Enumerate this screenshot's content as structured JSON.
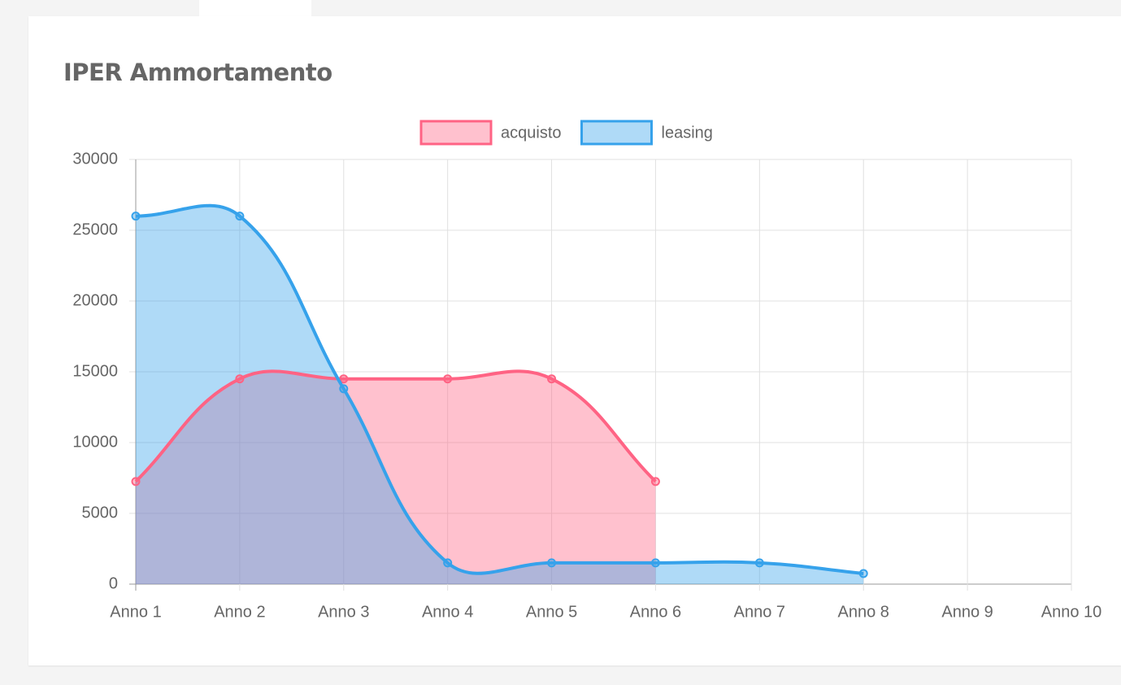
{
  "chart_data": {
    "type": "line",
    "title": "IPER Ammortamento",
    "categories": [
      "Anno 1",
      "Anno 2",
      "Anno 3",
      "Anno 4",
      "Anno 5",
      "Anno 6",
      "Anno 7",
      "Anno 8",
      "Anno 9",
      "Anno 10"
    ],
    "series": [
      {
        "name": "acquisto",
        "color": "#ff6384",
        "values": [
          7250,
          14500,
          14500,
          14500,
          14500,
          7250,
          null,
          null,
          null,
          null
        ]
      },
      {
        "name": "leasing",
        "color": "#36a2eb",
        "values": [
          26000,
          26000,
          13800,
          1500,
          1500,
          1500,
          1500,
          750,
          null,
          null
        ]
      }
    ],
    "ylim": [
      0,
      30000
    ],
    "yticks": [
      0,
      5000,
      10000,
      15000,
      20000,
      25000,
      30000
    ],
    "grid": true,
    "fill": true,
    "legend": "top"
  }
}
